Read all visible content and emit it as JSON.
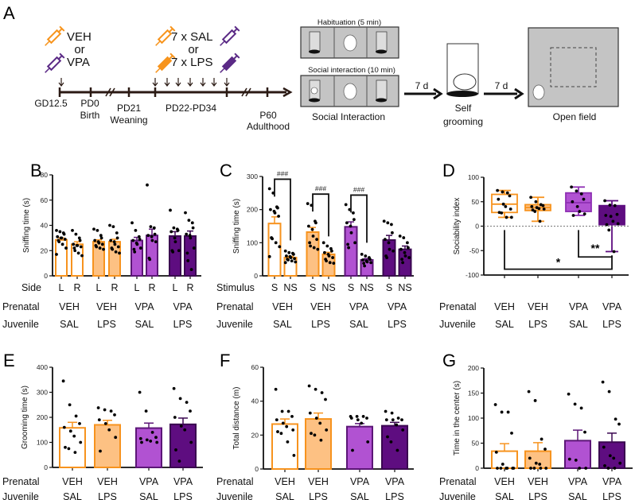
{
  "panel_a": {
    "letter": "A",
    "prenatal_top": "VEH",
    "prenatal_or": "or",
    "prenatal_bottom": "VPA",
    "juvenile_top": "7 x SAL",
    "juvenile_or": "or",
    "juvenile_bottom": "7 x LPS",
    "timeline": {
      "gd": "GD12.5",
      "pd0": "PD0",
      "birth": "Birth",
      "pd21": "PD21",
      "weaning": "Weaning",
      "pd22_34": "PD22-PD34",
      "p60": "P60",
      "adulthood": "Adulthood"
    },
    "habituation": "Habituation (5 min)",
    "social_int_phase": "Social interaction (10 min)",
    "social_interaction": "Social Interaction",
    "interval1": "7 d",
    "self": "Self",
    "grooming": "grooming",
    "interval2": "7 d",
    "open_field": "Open field",
    "colors": {
      "orange": "#f7941d",
      "purple": "#5b2a86"
    }
  },
  "colors": {
    "veh_sal": {
      "fill": "#ffffff",
      "stroke": "#f7931e"
    },
    "veh_lps": {
      "fill": "#fdc183",
      "stroke": "#f7931e"
    },
    "vpa_sal": {
      "fill": "#b152d2",
      "stroke": "#5c1677"
    },
    "vpa_lps": {
      "fill": "#5e0d80",
      "stroke": "#3a0750"
    }
  },
  "chart_data": [
    {
      "id": "B",
      "letter": "B",
      "type": "bar",
      "ylabel": "Sniffing time (s)",
      "ylim": [
        0,
        80
      ],
      "yticks": [
        0,
        20,
        40,
        60,
        80
      ],
      "row1_label": "Side",
      "row2_label": "Prenatal",
      "row3_label": "Juvenile",
      "pairs": [
        {
          "prenatal": "VEH",
          "juvenile": "SAL",
          "group": "veh_sal"
        },
        {
          "prenatal": "VEH",
          "juvenile": "LPS",
          "group": "veh_lps"
        },
        {
          "prenatal": "VPA",
          "juvenile": "SAL",
          "group": "vpa_sal"
        },
        {
          "prenatal": "VPA",
          "juvenile": "LPS",
          "group": "vpa_lps"
        }
      ],
      "bars": [
        {
          "label": "L",
          "mean": 28.5,
          "sem": 1.5,
          "points": [
            36,
            35,
            34,
            33,
            31,
            30,
            30,
            29,
            28,
            27,
            25,
            22,
            17
          ]
        },
        {
          "label": "R",
          "mean": 25,
          "sem": 2,
          "points": [
            36,
            33,
            30,
            28,
            25,
            24,
            24,
            23,
            22,
            20,
            18,
            16
          ]
        },
        {
          "label": "L",
          "mean": 27,
          "sem": 1.5,
          "points": [
            37,
            36,
            32,
            30,
            28,
            27,
            26,
            25,
            24,
            23,
            22,
            21
          ]
        },
        {
          "label": "R",
          "mean": 27,
          "sem": 2,
          "points": [
            40,
            39,
            34,
            30,
            28,
            27,
            25,
            23,
            22,
            21,
            19,
            18
          ]
        },
        {
          "label": "L",
          "mean": 28,
          "sem": 2.5,
          "points": [
            42,
            36,
            31,
            29,
            28,
            26,
            25,
            22,
            21,
            19
          ]
        },
        {
          "label": "R",
          "mean": 32,
          "sem": 5,
          "points": [
            72,
            39,
            38,
            33,
            32,
            31,
            28,
            27,
            14,
            13
          ]
        },
        {
          "label": "L",
          "mean": 31.5,
          "sem": 3.5,
          "points": [
            52,
            38,
            37,
            36,
            35,
            30,
            27,
            20,
            20,
            19
          ]
        },
        {
          "label": "R",
          "mean": 31.5,
          "sem": 4,
          "points": [
            50,
            44,
            42,
            38,
            33,
            32,
            30,
            22,
            18,
            12,
            5
          ]
        }
      ]
    },
    {
      "id": "C",
      "letter": "C",
      "type": "bar",
      "ylabel": "Sniffing time (s)",
      "ylim": [
        0,
        300
      ],
      "yticks": [
        0,
        100,
        200,
        300
      ],
      "row1_label": "Stimulus",
      "row2_label": "Prenatal",
      "row3_label": "Juvenile",
      "pairs": [
        {
          "prenatal": "VEH",
          "juvenile": "SAL",
          "group": "veh_sal",
          "sig": "###"
        },
        {
          "prenatal": "VEH",
          "juvenile": "LPS",
          "group": "veh_lps",
          "sig": "###"
        },
        {
          "prenatal": "VPA",
          "juvenile": "SAL",
          "group": "vpa_sal",
          "sig": "###"
        },
        {
          "prenatal": "VPA",
          "juvenile": "LPS",
          "group": "vpa_lps",
          "sig": ""
        }
      ],
      "bars": [
        {
          "label": "S",
          "mean": 158,
          "sem": 20,
          "points": [
            263,
            250,
            208,
            205,
            200,
            195,
            190,
            180,
            115,
            112,
            100,
            88,
            58
          ]
        },
        {
          "label": "NS",
          "mean": 55,
          "sem": 4,
          "points": [
            75,
            70,
            68,
            65,
            60,
            58,
            55,
            52,
            50,
            48,
            45,
            42,
            40
          ]
        },
        {
          "label": "S",
          "mean": 132,
          "sem": 14,
          "points": [
            218,
            213,
            165,
            160,
            150,
            140,
            120,
            110,
            100,
            90,
            85,
            80
          ]
        },
        {
          "label": "NS",
          "mean": 65,
          "sem": 6,
          "points": [
            100,
            90,
            82,
            75,
            70,
            65,
            60,
            55,
            50,
            45,
            40,
            38
          ]
        },
        {
          "label": "S",
          "mean": 148,
          "sem": 15,
          "points": [
            215,
            200,
            190,
            170,
            160,
            150,
            130,
            100,
            95,
            85
          ]
        },
        {
          "label": "NS",
          "mean": 48,
          "sem": 4,
          "points": [
            65,
            60,
            55,
            50,
            48,
            45,
            42,
            40,
            38,
            30
          ]
        },
        {
          "label": "S",
          "mean": 108,
          "sem": 14,
          "points": [
            165,
            160,
            155,
            130,
            110,
            100,
            80,
            75,
            60,
            55
          ]
        },
        {
          "label": "NS",
          "mean": 80,
          "sem": 10,
          "points": [
            120,
            115,
            100,
            85,
            80,
            70,
            60,
            55,
            50,
            40
          ]
        }
      ]
    },
    {
      "id": "D",
      "letter": "D",
      "type": "box",
      "ylabel": "Sociability index",
      "ylim": [
        -100,
        100
      ],
      "yticks": [
        -100,
        -50,
        0,
        50,
        100
      ],
      "row2_label": "Prenatal",
      "row3_label": "Juvenile",
      "groups": [
        {
          "prenatal": "VEH",
          "juvenile": "SAL",
          "group": "veh_sal",
          "min": 18,
          "q1": 28,
          "median": 45,
          "q3": 65,
          "max": 73,
          "points": [
            73,
            70,
            68,
            62,
            55,
            45,
            40,
            35,
            28,
            27,
            18,
            18
          ]
        },
        {
          "prenatal": "VEH",
          "juvenile": "LPS",
          "group": "veh_lps",
          "min": 10,
          "q1": 32,
          "median": 38,
          "q3": 44,
          "max": 59,
          "points": [
            59,
            50,
            44,
            42,
            40,
            38,
            36,
            35,
            33,
            30,
            10
          ]
        },
        {
          "prenatal": "VPA",
          "juvenile": "SAL",
          "group": "vpa_sal",
          "min": 22,
          "q1": 30,
          "median": 48,
          "q3": 68,
          "max": 80,
          "points": [
            80,
            72,
            66,
            55,
            50,
            40,
            30,
            25,
            22
          ]
        },
        {
          "prenatal": "VPA",
          "juvenile": "LPS",
          "group": "vpa_lps",
          "min": -52,
          "q1": 3,
          "median": 20,
          "q3": 42,
          "max": 52,
          "points": [
            52,
            43,
            42,
            24,
            22,
            20,
            10,
            5,
            3,
            -8,
            -52
          ]
        }
      ],
      "comparisons": [
        {
          "from": 0,
          "to": 3,
          "label": "*"
        },
        {
          "from": 2,
          "to": 3,
          "label": "**"
        }
      ]
    },
    {
      "id": "E",
      "letter": "E",
      "type": "bar",
      "ylabel": "Grooming time (s)",
      "ylim": [
        0,
        400
      ],
      "yticks": [
        0,
        100,
        200,
        300,
        400
      ],
      "row2_label": "Prenatal",
      "row3_label": "Juvenile",
      "groups": [
        {
          "prenatal": "VEH",
          "juvenile": "SAL",
          "group": "veh_sal",
          "mean": 158,
          "sem": 22,
          "points": [
            345,
            250,
            205,
            175,
            160,
            145,
            125,
            100,
            80,
            75,
            60
          ]
        },
        {
          "prenatal": "VEH",
          "juvenile": "LPS",
          "group": "veh_lps",
          "mean": 170,
          "sem": 18,
          "points": [
            238,
            230,
            225,
            210,
            190,
            175,
            150,
            120,
            65
          ]
        },
        {
          "prenatal": "VPA",
          "juvenile": "SAL",
          "group": "vpa_sal",
          "mean": 157,
          "sem": 20,
          "points": [
            300,
            225,
            140,
            120,
            115,
            110,
            105,
            100,
            100
          ]
        },
        {
          "prenatal": "VPA",
          "juvenile": "LPS",
          "group": "vpa_lps",
          "mean": 172,
          "sem": 25,
          "points": [
            315,
            275,
            260,
            225,
            200,
            165,
            150,
            100,
            70,
            25
          ]
        }
      ]
    },
    {
      "id": "F",
      "letter": "F",
      "type": "bar",
      "ylabel": "Total distance (m)",
      "ylim": [
        0,
        60
      ],
      "yticks": [
        0,
        20,
        40,
        60
      ],
      "row2_label": "Prenatal",
      "row3_label": "Juvenile",
      "groups": [
        {
          "prenatal": "VEH",
          "juvenile": "SAL",
          "group": "veh_sal",
          "mean": 26.5,
          "sem": 3,
          "points": [
            47,
            34,
            34,
            31,
            29,
            27,
            25,
            23,
            22,
            21,
            16,
            8
          ]
        },
        {
          "prenatal": "VEH",
          "juvenile": "LPS",
          "group": "veh_lps",
          "mean": 29.5,
          "sem": 3.5,
          "points": [
            49,
            47,
            45,
            41,
            33,
            30,
            27,
            23,
            21,
            20,
            17
          ]
        },
        {
          "prenatal": "VPA",
          "juvenile": "SAL",
          "group": "vpa_sal",
          "mean": 25,
          "sem": 1.8,
          "points": [
            31,
            31,
            31,
            30,
            30,
            29,
            27,
            16,
            11
          ]
        },
        {
          "prenatal": "VPA",
          "juvenile": "LPS",
          "group": "vpa_lps",
          "mean": 25.5,
          "sem": 2,
          "points": [
            34,
            33,
            30,
            29,
            29,
            29,
            26,
            23,
            19,
            16,
            11
          ]
        }
      ]
    },
    {
      "id": "G",
      "letter": "G",
      "type": "bar",
      "ylabel": "Time in the center (s)",
      "ylim": [
        0,
        200
      ],
      "yticks": [
        0,
        50,
        100,
        150,
        200
      ],
      "row2_label": "Prenatal",
      "row3_label": "Juvenile",
      "groups": [
        {
          "prenatal": "VEH",
          "juvenile": "SAL",
          "group": "veh_sal",
          "mean": 34,
          "sem": 15,
          "points": [
            127,
            112,
            112,
            70,
            32,
            8,
            0,
            0,
            0,
            0,
            0,
            0
          ]
        },
        {
          "prenatal": "VEH",
          "juvenile": "LPS",
          "group": "veh_lps",
          "mean": 34,
          "sem": 17,
          "points": [
            153,
            135,
            58,
            38,
            20,
            10,
            8,
            0,
            0,
            0,
            0
          ]
        },
        {
          "prenatal": "VPA",
          "juvenile": "SAL",
          "group": "vpa_sal",
          "mean": 55,
          "sem": 21,
          "points": [
            148,
            128,
            120,
            72,
            18,
            16,
            0,
            0
          ]
        },
        {
          "prenatal": "VPA",
          "juvenile": "LPS",
          "group": "vpa_lps",
          "mean": 52,
          "sem": 18,
          "points": [
            172,
            153,
            98,
            88,
            42,
            25,
            20,
            10,
            5,
            0,
            0
          ]
        }
      ]
    }
  ]
}
